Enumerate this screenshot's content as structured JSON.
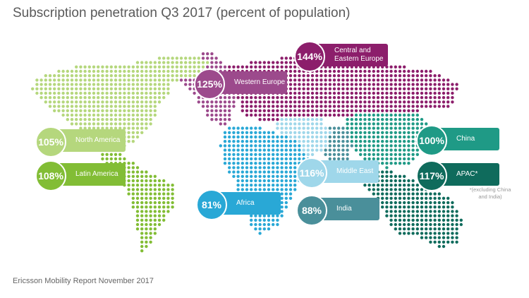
{
  "title": "Subscription penetration Q3 2017 (percent of population)",
  "source": "Ericsson Mobility Report November 2017",
  "footnote": "*(excluding China\nand India)",
  "regions": {
    "north_america": {
      "value": "105%",
      "label": "North America",
      "color": "#b5d77d"
    },
    "latin_america": {
      "value": "108%",
      "label": "Latin America",
      "color": "#82bd35"
    },
    "western_europe": {
      "value": "125%",
      "label": "Western Europe",
      "color": "#9c4a8c"
    },
    "central_eastern_europe": {
      "value": "144%",
      "label": "Central and\nEastern Europe",
      "color": "#8c1e6b"
    },
    "africa": {
      "value": "81%",
      "label": "Africa",
      "color": "#29a8d6"
    },
    "middle_east": {
      "value": "116%",
      "label": "Middle East",
      "color": "#9fd7ea"
    },
    "india": {
      "value": "88%",
      "label": "India",
      "color": "#4a8f9a"
    },
    "china": {
      "value": "100%",
      "label": "China",
      "color": "#1f9a86"
    },
    "apac": {
      "value": "117%",
      "label": "APAC*",
      "color": "#0f6b5c"
    }
  }
}
